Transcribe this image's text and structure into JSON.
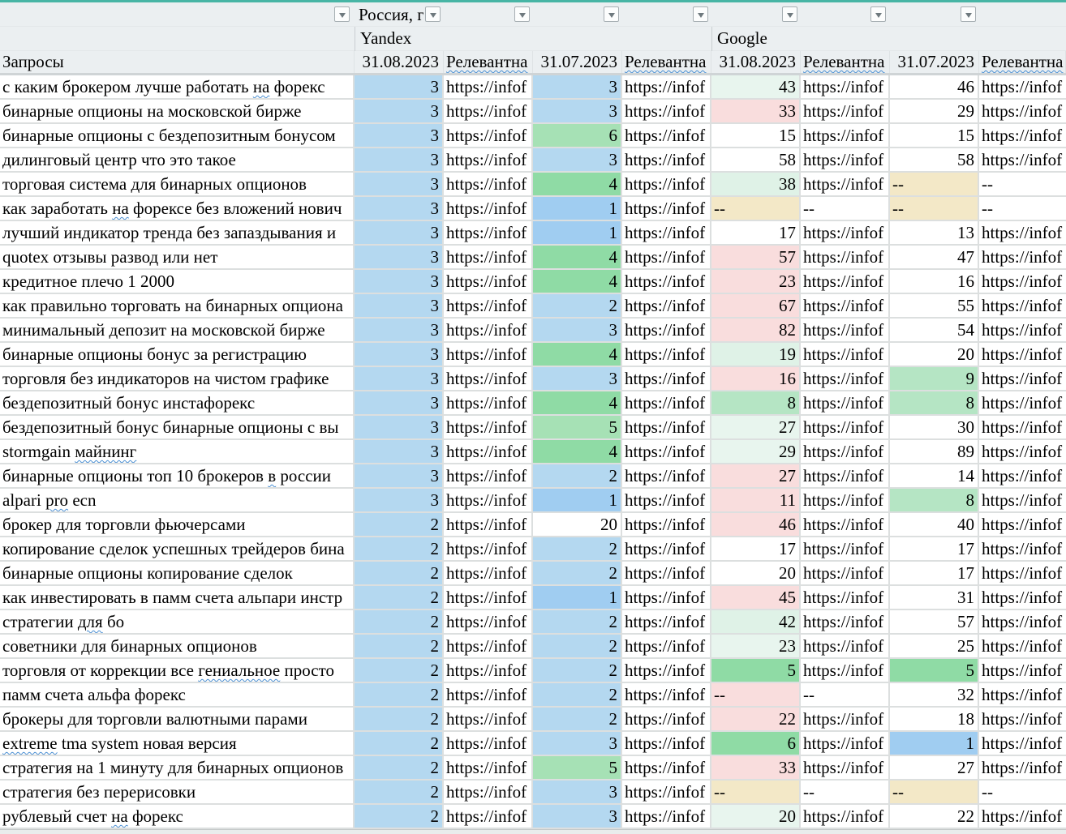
{
  "header": {
    "region_filter": "Россия, г",
    "engines": {
      "yandex": "Yandex",
      "google": "Google"
    },
    "query_header": "Запросы",
    "sub_headers": [
      "31.08.2023",
      "~Релевантна~",
      "31.07.2023",
      "~Релевантна~",
      "31.08.2023",
      "~Релевантна~",
      "31.07.2023",
      "~Релевантна~"
    ]
  },
  "palette": {
    "b": "#b4d8f0",
    "bd": "#a0cdf1",
    "g": "#8fdba5",
    "gl": "#a6e1b5",
    "gm": "#b5e5c4",
    "m": "#e8f5ee",
    "m2": "#dff2e7",
    "p": "#f9dddd",
    "t": "#f3e8c7",
    "w": "#ffffff"
  },
  "rows": [
    {
      "q": "с каким брокером лучше работать ~на~ форекс",
      "c": [
        [
          "3",
          "b"
        ],
        [
          "https://infof",
          "w"
        ],
        [
          "3",
          "b"
        ],
        [
          "https://infof",
          "w"
        ],
        [
          "43",
          "m"
        ],
        [
          "https://infof",
          "w"
        ],
        [
          "46",
          "w"
        ],
        [
          "https://infof",
          "w"
        ]
      ]
    },
    {
      "q": "бинарные опционы на московской бирже",
      "c": [
        [
          "3",
          "b"
        ],
        [
          "https://infof",
          "w"
        ],
        [
          "3",
          "b"
        ],
        [
          "https://infof",
          "w"
        ],
        [
          "33",
          "p"
        ],
        [
          "https://infof",
          "w"
        ],
        [
          "29",
          "w"
        ],
        [
          "https://infof",
          "w"
        ]
      ]
    },
    {
      "q": "бинарные опционы с бездепозитным бонусом",
      "c": [
        [
          "3",
          "b"
        ],
        [
          "https://infof",
          "w"
        ],
        [
          "6",
          "gl"
        ],
        [
          "https://infof",
          "w"
        ],
        [
          "15",
          "w"
        ],
        [
          "https://infof",
          "w"
        ],
        [
          "15",
          "w"
        ],
        [
          "https://infof",
          "w"
        ]
      ]
    },
    {
      "q": "дилинговый центр что это такое",
      "c": [
        [
          "3",
          "b"
        ],
        [
          "https://infof",
          "w"
        ],
        [
          "3",
          "b"
        ],
        [
          "https://infof",
          "w"
        ],
        [
          "58",
          "w"
        ],
        [
          "https://infof",
          "w"
        ],
        [
          "58",
          "w"
        ],
        [
          "https://infof",
          "w"
        ]
      ]
    },
    {
      "q": "торговая система для бинарных опционов",
      "c": [
        [
          "3",
          "b"
        ],
        [
          "https://infof",
          "w"
        ],
        [
          "4",
          "g"
        ],
        [
          "https://infof",
          "w"
        ],
        [
          "38",
          "m2"
        ],
        [
          "https://infof",
          "w"
        ],
        [
          "--",
          "t"
        ],
        [
          "--",
          "w"
        ]
      ]
    },
    {
      "q": "как заработать ~на~ форексе без вложений нович",
      "c": [
        [
          "3",
          "b"
        ],
        [
          "https://infof",
          "w"
        ],
        [
          "1",
          "bd"
        ],
        [
          "https://infof",
          "w"
        ],
        [
          "--",
          "t"
        ],
        [
          "--",
          "w"
        ],
        [
          "--",
          "t"
        ],
        [
          "--",
          "w"
        ]
      ]
    },
    {
      "q": "лучший индикатор тренда без запаздывания и",
      "c": [
        [
          "3",
          "b"
        ],
        [
          "https://infof",
          "w"
        ],
        [
          "1",
          "bd"
        ],
        [
          "https://infof",
          "w"
        ],
        [
          "17",
          "w"
        ],
        [
          "https://infof",
          "w"
        ],
        [
          "13",
          "w"
        ],
        [
          "https://infof",
          "w"
        ]
      ]
    },
    {
      "q": "quotex отзывы развод или нет",
      "c": [
        [
          "3",
          "b"
        ],
        [
          "https://infof",
          "w"
        ],
        [
          "4",
          "g"
        ],
        [
          "https://infof",
          "w"
        ],
        [
          "57",
          "p"
        ],
        [
          "https://infof",
          "w"
        ],
        [
          "47",
          "w"
        ],
        [
          "https://infof",
          "w"
        ]
      ]
    },
    {
      "q": "кредитное плечо 1 2000",
      "c": [
        [
          "3",
          "b"
        ],
        [
          "https://infof",
          "w"
        ],
        [
          "4",
          "g"
        ],
        [
          "https://infof",
          "w"
        ],
        [
          "23",
          "p"
        ],
        [
          "https://infof",
          "w"
        ],
        [
          "16",
          "w"
        ],
        [
          "https://infof",
          "w"
        ]
      ]
    },
    {
      "q": "как правильно торговать на бинарных опциона",
      "c": [
        [
          "3",
          "b"
        ],
        [
          "https://infof",
          "w"
        ],
        [
          "2",
          "b"
        ],
        [
          "https://infof",
          "w"
        ],
        [
          "67",
          "p"
        ],
        [
          "https://infof",
          "w"
        ],
        [
          "55",
          "w"
        ],
        [
          "https://infof",
          "w"
        ]
      ]
    },
    {
      "q": "минимальный депозит на московской бирже",
      "c": [
        [
          "3",
          "b"
        ],
        [
          "https://infof",
          "w"
        ],
        [
          "3",
          "b"
        ],
        [
          "https://infof",
          "w"
        ],
        [
          "82",
          "p"
        ],
        [
          "https://infof",
          "w"
        ],
        [
          "54",
          "w"
        ],
        [
          "https://infof",
          "w"
        ]
      ]
    },
    {
      "q": "бинарные опционы бонус за регистрацию",
      "c": [
        [
          "3",
          "b"
        ],
        [
          "https://infof",
          "w"
        ],
        [
          "4",
          "g"
        ],
        [
          "https://infof",
          "w"
        ],
        [
          "19",
          "m2"
        ],
        [
          "https://infof",
          "w"
        ],
        [
          "20",
          "w"
        ],
        [
          "https://infof",
          "w"
        ]
      ]
    },
    {
      "q": "торговля без индикаторов на чистом графике",
      "c": [
        [
          "3",
          "b"
        ],
        [
          "https://infof",
          "w"
        ],
        [
          "3",
          "b"
        ],
        [
          "https://infof",
          "w"
        ],
        [
          "16",
          "p"
        ],
        [
          "https://infof",
          "w"
        ],
        [
          "9",
          "gm"
        ],
        [
          "https://infof",
          "w"
        ]
      ]
    },
    {
      "q": "бездепозитный бонус инстафорекс",
      "c": [
        [
          "3",
          "b"
        ],
        [
          "https://infof",
          "w"
        ],
        [
          "4",
          "g"
        ],
        [
          "https://infof",
          "w"
        ],
        [
          "8",
          "gm"
        ],
        [
          "https://infof",
          "w"
        ],
        [
          "8",
          "gm"
        ],
        [
          "https://infof",
          "w"
        ]
      ]
    },
    {
      "q": "бездепозитный бонус бинарные опционы с вы",
      "c": [
        [
          "3",
          "b"
        ],
        [
          "https://infof",
          "w"
        ],
        [
          "5",
          "gl"
        ],
        [
          "https://infof",
          "w"
        ],
        [
          "27",
          "m"
        ],
        [
          "https://infof",
          "w"
        ],
        [
          "30",
          "w"
        ],
        [
          "https://infof",
          "w"
        ]
      ]
    },
    {
      "q": "stormgain ~майнинг~",
      "c": [
        [
          "3",
          "b"
        ],
        [
          "https://infof",
          "w"
        ],
        [
          "4",
          "g"
        ],
        [
          "https://infof",
          "w"
        ],
        [
          "29",
          "m"
        ],
        [
          "https://infof",
          "w"
        ],
        [
          "89",
          "w"
        ],
        [
          "https://infof",
          "w"
        ]
      ]
    },
    {
      "q": "бинарные опционы топ 10 брокеров ~в~ россии",
      "c": [
        [
          "3",
          "b"
        ],
        [
          "https://infof",
          "w"
        ],
        [
          "2",
          "b"
        ],
        [
          "https://infof",
          "w"
        ],
        [
          "27",
          "p"
        ],
        [
          "https://infof",
          "w"
        ],
        [
          "14",
          "w"
        ],
        [
          "https://infof",
          "w"
        ]
      ]
    },
    {
      "q": "alpari ~pro~ ecn",
      "c": [
        [
          "3",
          "b"
        ],
        [
          "https://infof",
          "w"
        ],
        [
          "1",
          "bd"
        ],
        [
          "https://infof",
          "w"
        ],
        [
          "11",
          "p"
        ],
        [
          "https://infof",
          "w"
        ],
        [
          "8",
          "gm"
        ],
        [
          "https://infof",
          "w"
        ]
      ]
    },
    {
      "q": "брокер для торговли фьючерсами",
      "c": [
        [
          "2",
          "b"
        ],
        [
          "https://infof",
          "w"
        ],
        [
          "20",
          "w"
        ],
        [
          "https://infof",
          "w"
        ],
        [
          "46",
          "p"
        ],
        [
          "https://infof",
          "w"
        ],
        [
          "40",
          "w"
        ],
        [
          "https://infof",
          "w"
        ]
      ]
    },
    {
      "q": "копирование сделок успешных трейдеров бина",
      "c": [
        [
          "2",
          "b"
        ],
        [
          "https://infof",
          "w"
        ],
        [
          "2",
          "b"
        ],
        [
          "https://infof",
          "w"
        ],
        [
          "17",
          "w"
        ],
        [
          "https://infof",
          "w"
        ],
        [
          "17",
          "w"
        ],
        [
          "https://infof",
          "w"
        ]
      ]
    },
    {
      "q": "бинарные опционы копирование сделок",
      "c": [
        [
          "2",
          "b"
        ],
        [
          "https://infof",
          "w"
        ],
        [
          "2",
          "b"
        ],
        [
          "https://infof",
          "w"
        ],
        [
          "20",
          "w"
        ],
        [
          "https://infof",
          "w"
        ],
        [
          "17",
          "w"
        ],
        [
          "https://infof",
          "w"
        ]
      ]
    },
    {
      "q": "как инвестировать в памм счета альпари инстр",
      "c": [
        [
          "2",
          "b"
        ],
        [
          "https://infof",
          "w"
        ],
        [
          "1",
          "bd"
        ],
        [
          "https://infof",
          "w"
        ],
        [
          "45",
          "p"
        ],
        [
          "https://infof",
          "w"
        ],
        [
          "31",
          "w"
        ],
        [
          "https://infof",
          "w"
        ]
      ]
    },
    {
      "q": "стратегии ~для~ бо",
      "c": [
        [
          "2",
          "b"
        ],
        [
          "https://infof",
          "w"
        ],
        [
          "2",
          "b"
        ],
        [
          "https://infof",
          "w"
        ],
        [
          "42",
          "m2"
        ],
        [
          "https://infof",
          "w"
        ],
        [
          "57",
          "w"
        ],
        [
          "https://infof",
          "w"
        ]
      ]
    },
    {
      "q": "советники для бинарных опционов",
      "c": [
        [
          "2",
          "b"
        ],
        [
          "https://infof",
          "w"
        ],
        [
          "2",
          "b"
        ],
        [
          "https://infof",
          "w"
        ],
        [
          "23",
          "m"
        ],
        [
          "https://infof",
          "w"
        ],
        [
          "25",
          "w"
        ],
        [
          "https://infof",
          "w"
        ]
      ]
    },
    {
      "q": "торговля от коррекции все ~гениальное~ просто",
      "c": [
        [
          "2",
          "b"
        ],
        [
          "https://infof",
          "w"
        ],
        [
          "2",
          "b"
        ],
        [
          "https://infof",
          "w"
        ],
        [
          "5",
          "g"
        ],
        [
          "https://infof",
          "w"
        ],
        [
          "5",
          "g"
        ],
        [
          "https://infof",
          "w"
        ]
      ]
    },
    {
      "q": "памм счета альфа форекс",
      "c": [
        [
          "2",
          "b"
        ],
        [
          "https://infof",
          "w"
        ],
        [
          "2",
          "b"
        ],
        [
          "https://infof",
          "w"
        ],
        [
          "--",
          "p"
        ],
        [
          "--",
          "w"
        ],
        [
          "32",
          "w"
        ],
        [
          "https://infof",
          "w"
        ]
      ]
    },
    {
      "q": "брокеры для торговли валютными парами",
      "c": [
        [
          "2",
          "b"
        ],
        [
          "https://infof",
          "w"
        ],
        [
          "2",
          "b"
        ],
        [
          "https://infof",
          "w"
        ],
        [
          "22",
          "p"
        ],
        [
          "https://infof",
          "w"
        ],
        [
          "18",
          "w"
        ],
        [
          "https://infof",
          "w"
        ]
      ]
    },
    {
      "q": "~extreme~ tma system новая версия",
      "c": [
        [
          "2",
          "b"
        ],
        [
          "https://infof",
          "w"
        ],
        [
          "3",
          "b"
        ],
        [
          "https://infof",
          "w"
        ],
        [
          "6",
          "g"
        ],
        [
          "https://infof",
          "w"
        ],
        [
          "1",
          "bd"
        ],
        [
          "https://infof",
          "w"
        ]
      ]
    },
    {
      "q": "стратегия на 1 минуту для бинарных опционов",
      "c": [
        [
          "2",
          "b"
        ],
        [
          "https://infof",
          "w"
        ],
        [
          "5",
          "gl"
        ],
        [
          "https://infof",
          "w"
        ],
        [
          "33",
          "p"
        ],
        [
          "https://infof",
          "w"
        ],
        [
          "27",
          "w"
        ],
        [
          "https://infof",
          "w"
        ]
      ]
    },
    {
      "q": "стратегия без перерисовки",
      "c": [
        [
          "2",
          "b"
        ],
        [
          "https://infof",
          "w"
        ],
        [
          "3",
          "b"
        ],
        [
          "https://infof",
          "w"
        ],
        [
          "--",
          "t"
        ],
        [
          "--",
          "w"
        ],
        [
          "--",
          "t"
        ],
        [
          "--",
          "w"
        ]
      ]
    },
    {
      "q": "рублевый счет ~на~ форекс",
      "c": [
        [
          "2",
          "b"
        ],
        [
          "https://infof",
          "w"
        ],
        [
          "3",
          "b"
        ],
        [
          "https://infof",
          "w"
        ],
        [
          "20",
          "m"
        ],
        [
          "https://infof",
          "w"
        ],
        [
          "22",
          "w"
        ],
        [
          "https://infof",
          "w"
        ]
      ]
    }
  ]
}
